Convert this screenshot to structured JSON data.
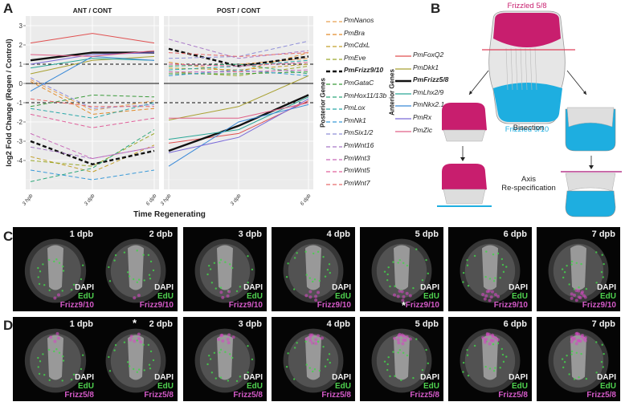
{
  "panels": {
    "a": "A",
    "b": "B",
    "c": "C",
    "d": "D"
  },
  "chart_data": {
    "type": "line",
    "ylabel": "log2 Fold Change (Regen / Control)",
    "xlabel": "Time Regenerating",
    "ylim": [
      -5.5,
      3.5
    ],
    "yticks": [
      -4,
      -3,
      -2,
      -1,
      0,
      1,
      2,
      3
    ],
    "facets": [
      "ANT / CONT",
      "POST / CONT"
    ],
    "x": [
      "3 hpb",
      "3 dpb",
      "6 dpb"
    ],
    "reference_lines": [
      {
        "y": 0,
        "style": "solid"
      },
      {
        "y": 1,
        "style": "dashed"
      },
      {
        "y": -1,
        "style": "dashed"
      }
    ],
    "series": [
      {
        "name": "PmNanos",
        "group": "Posterior Genes",
        "color": "#e8a050",
        "dashed": true,
        "ant": [
          0.2,
          -1.4,
          -0.9
        ],
        "post": [
          0.9,
          1.0,
          1.3
        ]
      },
      {
        "name": "PmBra",
        "group": "Posterior Genes",
        "color": "#e28b2a",
        "dashed": true,
        "ant": [
          0.1,
          -1.6,
          -1.3
        ],
        "post": [
          1.1,
          0.6,
          1.6
        ]
      },
      {
        "name": "PmCdxL",
        "group": "Posterior Genes",
        "color": "#c2a02a",
        "dashed": true,
        "ant": [
          -3.8,
          -4.6,
          -3.2
        ],
        "post": [
          0.8,
          0.7,
          1.0
        ]
      },
      {
        "name": "PmEve",
        "group": "Posterior Genes",
        "color": "#9aa82a",
        "dashed": true,
        "ant": [
          -4.0,
          -4.3,
          -2.6
        ],
        "post": [
          0.6,
          0.4,
          0.9
        ]
      },
      {
        "name": "PmFrizz9/10",
        "group": "Posterior Genes",
        "color": "#111111",
        "dashed": true,
        "bold": true,
        "ant": [
          -3.0,
          -4.2,
          -3.5
        ],
        "post": [
          1.8,
          0.9,
          1.4
        ]
      },
      {
        "name": "PmGataC",
        "group": "Posterior Genes",
        "color": "#3a9a3a",
        "dashed": true,
        "ant": [
          -1.2,
          -0.6,
          -0.7
        ],
        "post": [
          0.5,
          0.5,
          0.6
        ]
      },
      {
        "name": "PmHox11/13b",
        "group": "Posterior Genes",
        "color": "#2ea87a",
        "dashed": true,
        "ant": [
          -5.1,
          -4.4,
          -2.4
        ],
        "post": [
          0.9,
          1.0,
          0.5
        ]
      },
      {
        "name": "PmLox",
        "group": "Posterior Genes",
        "color": "#2aa8a8",
        "dashed": true,
        "ant": [
          -1.3,
          -1.8,
          -1.0
        ],
        "post": [
          0.7,
          0.9,
          1.2
        ]
      },
      {
        "name": "PmNk1",
        "group": "Posterior Genes",
        "color": "#3a9ad8",
        "dashed": true,
        "ant": [
          -4.5,
          -5.0,
          -4.5
        ],
        "post": [
          0.4,
          0.7,
          0.4
        ]
      },
      {
        "name": "PmSix1/2",
        "group": "Posterior Genes",
        "color": "#8f8fd8",
        "dashed": true,
        "ant": [
          0.3,
          -1.3,
          -1.1
        ],
        "post": [
          1.3,
          1.4,
          2.2
        ]
      },
      {
        "name": "PmWnt16",
        "group": "Posterior Genes",
        "color": "#a878c8",
        "dashed": true,
        "ant": [
          -3.3,
          -3.9,
          -3.3
        ],
        "post": [
          2.3,
          1.3,
          1.7
        ]
      },
      {
        "name": "PmWnt3",
        "group": "Posterior Genes",
        "color": "#c868b8",
        "dashed": true,
        "ant": [
          -2.6,
          -3.9,
          -3.3
        ],
        "post": [
          0.6,
          0.6,
          0.7
        ]
      },
      {
        "name": "PmWnt5",
        "group": "Posterior Genes",
        "color": "#e0609a",
        "dashed": true,
        "ant": [
          -1.6,
          -2.3,
          -1.8
        ],
        "post": [
          1.0,
          0.9,
          1.1
        ]
      },
      {
        "name": "PmWnt7",
        "group": "Posterior Genes",
        "color": "#e86a6a",
        "dashed": true,
        "ant": [
          -0.8,
          -1.2,
          -1.2
        ],
        "post": [
          1.6,
          1.4,
          1.6
        ]
      },
      {
        "name": "PmFoxQ2",
        "group": "Anterior Genes",
        "color": "#e05050",
        "dashed": false,
        "ant": [
          2.1,
          2.6,
          2.1
        ],
        "post": [
          -3.1,
          -2.6,
          -0.9
        ]
      },
      {
        "name": "PmDkk1",
        "group": "Anterior Genes",
        "color": "#a8a030",
        "dashed": false,
        "ant": [
          0.5,
          1.2,
          1.4
        ],
        "post": [
          -1.9,
          -1.2,
          0.4
        ]
      },
      {
        "name": "PmFrizz5/8",
        "group": "Anterior Genes",
        "color": "#111111",
        "dashed": false,
        "bold": true,
        "ant": [
          1.2,
          1.6,
          1.6
        ],
        "post": [
          -3.5,
          -2.2,
          -0.6
        ]
      },
      {
        "name": "PmLhx2/9",
        "group": "Anterior Genes",
        "color": "#2aa898",
        "dashed": false,
        "ant": [
          0.8,
          1.3,
          1.2
        ],
        "post": [
          -2.9,
          -2.4,
          -0.7
        ]
      },
      {
        "name": "PmNkx2.1",
        "group": "Anterior Genes",
        "color": "#3a8ad8",
        "dashed": false,
        "ant": [
          -0.4,
          1.4,
          1.2
        ],
        "post": [
          -4.3,
          -2.0,
          -1.1
        ]
      },
      {
        "name": "PmRx",
        "group": "Anterior Genes",
        "color": "#7a6ad8",
        "dashed": false,
        "ant": [
          1.0,
          1.5,
          1.6
        ],
        "post": [
          -3.6,
          -2.8,
          -0.8
        ]
      },
      {
        "name": "PmZic",
        "group": "Anterior Genes",
        "color": "#e06088",
        "dashed": false,
        "ant": [
          1.5,
          1.4,
          1.7
        ],
        "post": [
          -1.8,
          -1.8,
          -1.0
        ]
      }
    ]
  },
  "legend_groups": {
    "posterior": "Posterior Genes",
    "anterior": "Anterior Genes"
  },
  "diagram": {
    "frizzled58": "Frizzled 5/8",
    "frizzled910": "Frizzled 9/10",
    "bisection": "Bisection",
    "axis_respec": "Axis\nRe-specification",
    "top_color": "#c81e6e",
    "bottom_color": "#1eaee0"
  },
  "micro_c": [
    {
      "dpb": "1 dpb",
      "star": false
    },
    {
      "dpb": "2 dpb",
      "star": false
    },
    {
      "dpb": "3 dpb",
      "star": false
    },
    {
      "dpb": "4 dpb",
      "star": false
    },
    {
      "dpb": "5 dpb",
      "star": true
    },
    {
      "dpb": "6 dpb",
      "star": false
    },
    {
      "dpb": "7 dpb",
      "star": false
    }
  ],
  "micro_d": [
    {
      "dpb": "1 dpb",
      "star": false
    },
    {
      "dpb": "2 dpb",
      "star": true
    },
    {
      "dpb": "3 dpb",
      "star": false
    },
    {
      "dpb": "4 dpb",
      "star": false
    },
    {
      "dpb": "5 dpb",
      "star": false
    },
    {
      "dpb": "6 dpb",
      "star": false
    },
    {
      "dpb": "7 dpb",
      "star": false
    }
  ],
  "stain": {
    "dapi": "DAPI",
    "edu": "EdU",
    "frizz910": "Frizz9/10",
    "frizz58": "Frizz5/8",
    "star": "*"
  }
}
